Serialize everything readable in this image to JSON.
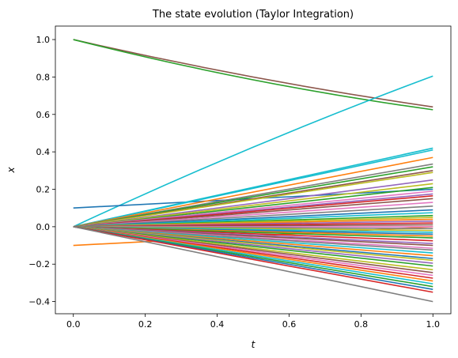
{
  "chart_data": {
    "type": "line",
    "title": "The state evolution (Taylor Integration)",
    "xlabel": "t",
    "ylabel": "x",
    "xlim": [
      -0.05,
      1.05
    ],
    "ylim": [
      -0.465,
      1.072
    ],
    "xticks": [
      "0.0",
      "0.2",
      "0.4",
      "0.6",
      "0.8",
      "1.0"
    ],
    "yticks": [
      "−0.4",
      "−0.2",
      "0.0",
      "0.2",
      "0.4",
      "0.6",
      "0.8",
      "1.0"
    ],
    "grid": false,
    "x": [
      0,
      1
    ],
    "series": [
      {
        "color": "#8c564b",
        "start": 1.0,
        "end": 0.64,
        "mid": 0.8
      },
      {
        "color": "#2ca02c",
        "start": 1.0,
        "end": 0.625,
        "mid": 0.785
      },
      {
        "color": "#17becf",
        "start": 0.0,
        "end": 0.805,
        "mid": 0.425
      },
      {
        "color": "#1f77b4",
        "start": 0.1,
        "end": 0.2
      },
      {
        "color": "#ff7f0e",
        "start": -0.1,
        "end": 0.0
      },
      {
        "color": "#17becf",
        "start": 0.0,
        "end": 0.42
      },
      {
        "color": "#17becf",
        "start": 0.0,
        "end": 0.41
      },
      {
        "color": "#ff7f0e",
        "start": 0.0,
        "end": 0.37
      },
      {
        "color": "#7f7f7f",
        "start": 0.0,
        "end": 0.335
      },
      {
        "color": "#2ca02c",
        "start": 0.0,
        "end": 0.32
      },
      {
        "color": "#8c564b",
        "start": 0.0,
        "end": 0.3
      },
      {
        "color": "#bcbd22",
        "start": 0.0,
        "end": 0.29
      },
      {
        "color": "#9467bd",
        "start": 0.0,
        "end": 0.25
      },
      {
        "color": "#bcbd22",
        "start": 0.0,
        "end": 0.23
      },
      {
        "color": "#2ca02c",
        "start": 0.0,
        "end": 0.21
      },
      {
        "color": "#e377c2",
        "start": 0.0,
        "end": 0.19
      },
      {
        "color": "#9467bd",
        "start": 0.0,
        "end": 0.175
      },
      {
        "color": "#d62728",
        "start": 0.0,
        "end": 0.165
      },
      {
        "color": "#8c564b",
        "start": 0.0,
        "end": 0.15
      },
      {
        "color": "#e377c2",
        "start": 0.0,
        "end": 0.13
      },
      {
        "color": "#7f7f7f",
        "start": 0.0,
        "end": 0.11
      },
      {
        "color": "#1f77b4",
        "start": 0.0,
        "end": 0.09
      },
      {
        "color": "#17becf",
        "start": 0.0,
        "end": 0.075
      },
      {
        "color": "#2ca02c",
        "start": 0.0,
        "end": 0.06
      },
      {
        "color": "#bcbd22",
        "start": 0.0,
        "end": 0.05
      },
      {
        "color": "#ff7f0e",
        "start": 0.0,
        "end": 0.04
      },
      {
        "color": "#9467bd",
        "start": 0.0,
        "end": 0.03
      },
      {
        "color": "#d62728",
        "start": 0.0,
        "end": 0.02
      },
      {
        "color": "#8c564b",
        "start": 0.0,
        "end": 0.01
      },
      {
        "color": "#e377c2",
        "start": 0.0,
        "end": 0.0
      },
      {
        "color": "#7f7f7f",
        "start": 0.0,
        "end": -0.01
      },
      {
        "color": "#bcbd22",
        "start": 0.0,
        "end": -0.02
      },
      {
        "color": "#17becf",
        "start": 0.0,
        "end": -0.03
      },
      {
        "color": "#1f77b4",
        "start": 0.0,
        "end": -0.04
      },
      {
        "color": "#ff7f0e",
        "start": 0.0,
        "end": -0.05
      },
      {
        "color": "#2ca02c",
        "start": 0.0,
        "end": -0.06
      },
      {
        "color": "#d62728",
        "start": 0.0,
        "end": -0.075
      },
      {
        "color": "#9467bd",
        "start": 0.0,
        "end": -0.09
      },
      {
        "color": "#8c564b",
        "start": 0.0,
        "end": -0.1
      },
      {
        "color": "#e377c2",
        "start": 0.0,
        "end": -0.115
      },
      {
        "color": "#7f7f7f",
        "start": 0.0,
        "end": -0.125
      },
      {
        "color": "#17becf",
        "start": 0.0,
        "end": -0.14
      },
      {
        "color": "#ff7f0e",
        "start": 0.0,
        "end": -0.155
      },
      {
        "color": "#1f77b4",
        "start": 0.0,
        "end": -0.17
      },
      {
        "color": "#bcbd22",
        "start": 0.0,
        "end": -0.18
      },
      {
        "color": "#9467bd",
        "start": 0.0,
        "end": -0.195
      },
      {
        "color": "#2ca02c",
        "start": 0.0,
        "end": -0.21
      },
      {
        "color": "#bcbd22",
        "start": 0.0,
        "end": -0.23
      },
      {
        "color": "#8c564b",
        "start": 0.0,
        "end": -0.245
      },
      {
        "color": "#e377c2",
        "start": 0.0,
        "end": -0.26
      },
      {
        "color": "#d62728",
        "start": 0.0,
        "end": -0.275
      },
      {
        "color": "#ff7f0e",
        "start": 0.0,
        "end": -0.29
      },
      {
        "color": "#17becf",
        "start": 0.0,
        "end": -0.305
      },
      {
        "color": "#2ca02c",
        "start": 0.0,
        "end": -0.32
      },
      {
        "color": "#1f77b4",
        "start": 0.0,
        "end": -0.335
      },
      {
        "color": "#d62728",
        "start": 0.0,
        "end": -0.35
      },
      {
        "color": "#7f7f7f",
        "start": 0.0,
        "end": -0.4
      }
    ]
  }
}
